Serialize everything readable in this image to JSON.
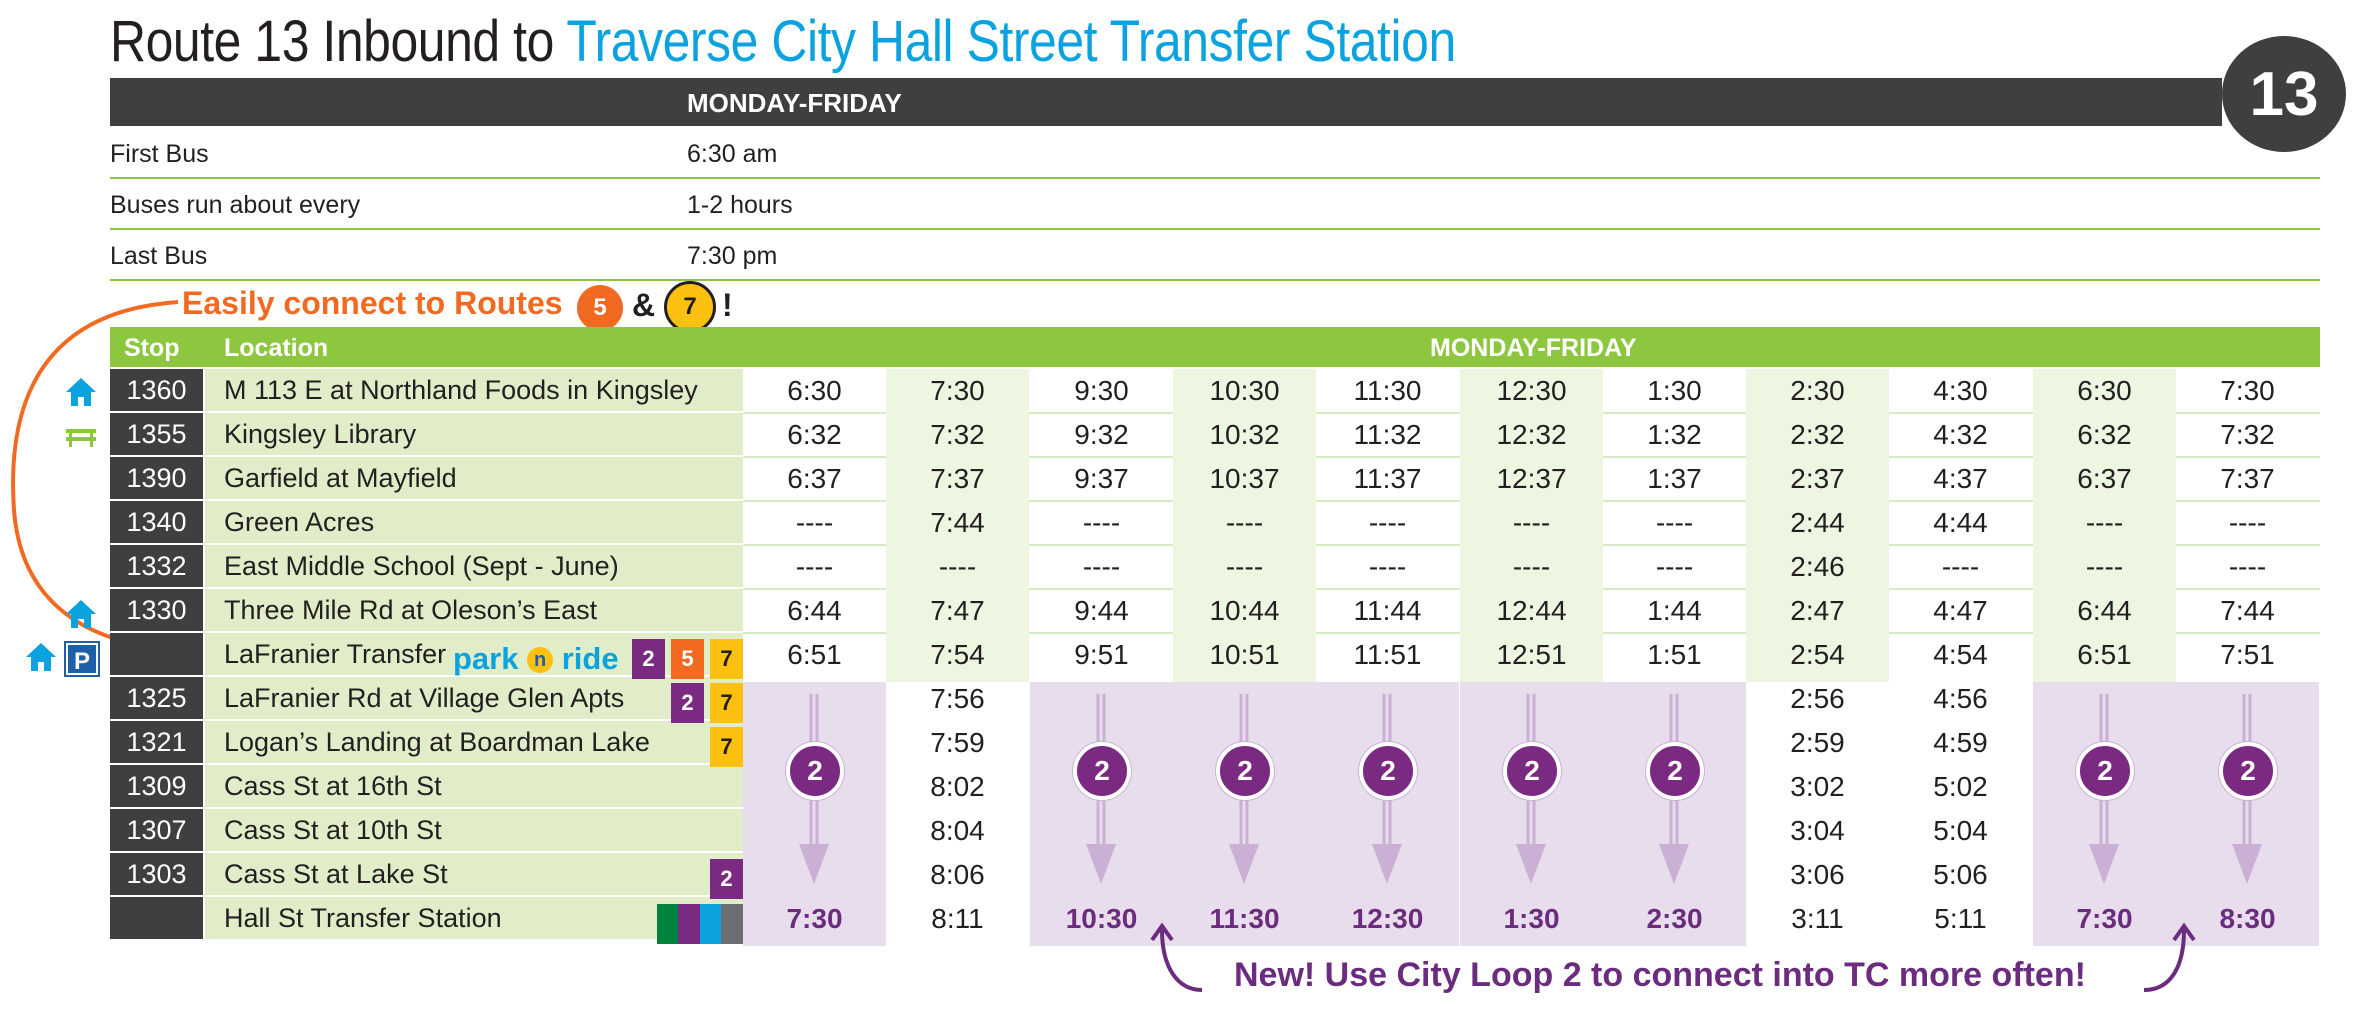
{
  "title": {
    "prefix": "Route 13 Inbound to",
    "destination": "Traverse City Hall Street Transfer Station"
  },
  "route_badge": "13",
  "summary": {
    "header": "MONDAY-FRIDAY",
    "rows": [
      {
        "label": "First Bus",
        "value": "6:30 am"
      },
      {
        "label": "Buses run about every",
        "value": "1-2 hours"
      },
      {
        "label": "Last Bus",
        "value": "7:30 pm"
      }
    ]
  },
  "connect": {
    "text": "Easily connect to Routes",
    "route_a": "5",
    "amp": "&",
    "route_b": "7",
    "bang": "!"
  },
  "table": {
    "col_stop": "Stop",
    "col_location": "Location",
    "col_days": "MONDAY-FRIDAY",
    "rows": [
      {
        "stop": "1360",
        "location": "M 113 E at Northland Foods in Kingsley"
      },
      {
        "stop": "1355",
        "location": "Kingsley Library"
      },
      {
        "stop": "1390",
        "location": "Garfield at Mayfield"
      },
      {
        "stop": "1340",
        "location": "Green Acres"
      },
      {
        "stop": "1332",
        "location": "East Middle School (Sept - June)"
      },
      {
        "stop": "1330",
        "location": "Three Mile Rd at Oleson’s East"
      },
      {
        "stop": "",
        "location": "LaFranier Transfer"
      },
      {
        "stop": "1325",
        "location": "LaFranier Rd at Village Glen Apts"
      },
      {
        "stop": "1321",
        "location": "Logan’s Landing at Boardman Lake"
      },
      {
        "stop": "1309",
        "location": "Cass St at 16th St"
      },
      {
        "stop": "1307",
        "location": "Cass St at 10th St"
      },
      {
        "stop": "1303",
        "location": "Cass St at Lake St"
      },
      {
        "stop": "",
        "location": "Hall St Transfer Station"
      }
    ],
    "columns": [
      {
        "top": [
          "6:30",
          "6:32",
          "6:37",
          "----",
          "----",
          "6:44",
          "6:51"
        ],
        "loop": "2",
        "bottom": [],
        "final": "7:30"
      },
      {
        "top": [
          "7:30",
          "7:32",
          "7:37",
          "7:44",
          "----",
          "7:47",
          "7:54"
        ],
        "loop": "",
        "bottom": [
          "7:56",
          "7:59",
          "8:02",
          "8:04",
          "8:06"
        ],
        "final": "8:11"
      },
      {
        "top": [
          "9:30",
          "9:32",
          "9:37",
          "----",
          "----",
          "9:44",
          "9:51"
        ],
        "loop": "2",
        "bottom": [],
        "final": "10:30"
      },
      {
        "top": [
          "10:30",
          "10:32",
          "10:37",
          "----",
          "----",
          "10:44",
          "10:51"
        ],
        "loop": "2",
        "bottom": [],
        "final": "11:30"
      },
      {
        "top": [
          "11:30",
          "11:32",
          "11:37",
          "----",
          "----",
          "11:44",
          "11:51"
        ],
        "loop": "2",
        "bottom": [],
        "final": "12:30"
      },
      {
        "top": [
          "12:30",
          "12:32",
          "12:37",
          "----",
          "----",
          "12:44",
          "12:51"
        ],
        "loop": "2",
        "bottom": [],
        "final": "1:30"
      },
      {
        "top": [
          "1:30",
          "1:32",
          "1:37",
          "----",
          "----",
          "1:44",
          "1:51"
        ],
        "loop": "2",
        "bottom": [],
        "final": "2:30"
      },
      {
        "top": [
          "2:30",
          "2:32",
          "2:37",
          "2:44",
          "2:46",
          "2:47",
          "2:54"
        ],
        "loop": "",
        "bottom": [
          "2:56",
          "2:59",
          "3:02",
          "3:04",
          "3:06"
        ],
        "final": "3:11"
      },
      {
        "top": [
          "4:30",
          "4:32",
          "4:37",
          "4:44",
          "----",
          "4:47",
          "4:54"
        ],
        "loop": "",
        "bottom": [
          "4:56",
          "4:59",
          "5:02",
          "5:04",
          "5:06"
        ],
        "final": "5:11"
      },
      {
        "top": [
          "6:30",
          "6:32",
          "6:37",
          "----",
          "----",
          "6:44",
          "6:51"
        ],
        "loop": "2",
        "bottom": [],
        "final": "7:30"
      },
      {
        "top": [
          "7:30",
          "7:32",
          "7:37",
          "----",
          "----",
          "7:44",
          "7:51"
        ],
        "loop": "2",
        "bottom": [],
        "final": "8:30"
      }
    ]
  },
  "park_ride": {
    "a": "park",
    "n": "n",
    "b": "ride"
  },
  "chips": {
    "lafranier": [
      "2",
      "5",
      "7"
    ],
    "village_glen": [
      "2",
      "7"
    ],
    "logans": [
      "7"
    ],
    "lake_st": [
      "2"
    ]
  },
  "colors": {
    "route2": "#7b2a82",
    "route5": "#f26a21",
    "route7": "#fcc010",
    "green": "#8dc63f",
    "blue": "#0aa3df",
    "dark": "#3f3f41",
    "purple_band": "#e8ddec"
  },
  "note": "New! Use City Loop 2 to connect into TC more often!"
}
